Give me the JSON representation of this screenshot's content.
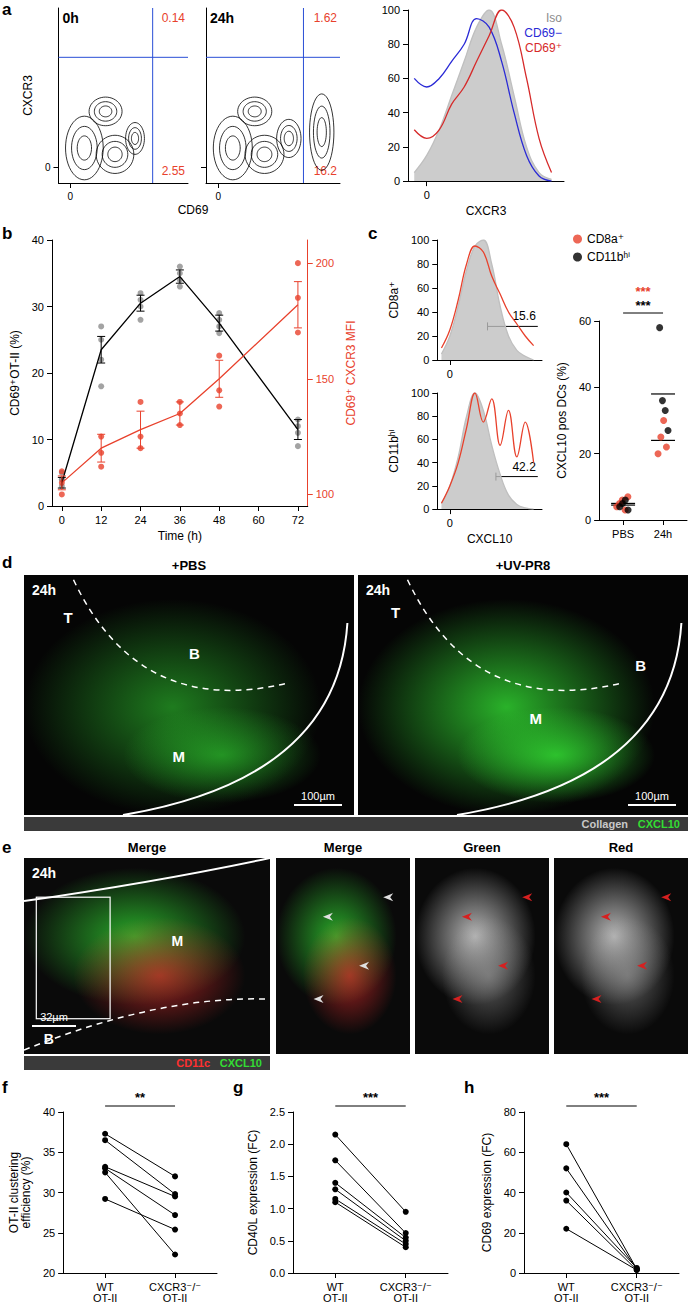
{
  "chart_data": [
    {
      "panel": "a",
      "type": "contour",
      "title": "0h",
      "xlabel": "CD69",
      "ylabel": "CXCR3",
      "color": "#000000",
      "xlim": [
        -10,
        100
      ],
      "ylim": [
        -10,
        100
      ],
      "xticks": [
        0
      ],
      "yticks": [
        0
      ],
      "gates": {
        "x": 70,
        "y": 69
      },
      "quadrants": {
        "upper_right": 0.14,
        "lower_right": 2.55
      },
      "clusters": [
        {
          "x": 12,
          "y": 12,
          "rx": 16,
          "ry": 20
        },
        {
          "x": 38,
          "y": 8,
          "rx": 16,
          "ry": 12
        },
        {
          "x": 30,
          "y": 35,
          "rx": 14,
          "ry": 9
        },
        {
          "x": 55,
          "y": 18,
          "rx": 8,
          "ry": 10
        }
      ]
    },
    {
      "type": "contour",
      "title": "24h",
      "color": "#000000",
      "xlim": [
        -10,
        100
      ],
      "ylim": [
        -10,
        100
      ],
      "xticks": [
        0
      ],
      "yticks": [
        0
      ],
      "gates": {
        "x": 70,
        "y": 69
      },
      "quadrants": {
        "upper_right": 1.62,
        "lower_right": 16.2
      },
      "clusters": [
        {
          "x": 12,
          "y": 12,
          "rx": 16,
          "ry": 20
        },
        {
          "x": 38,
          "y": 8,
          "rx": 16,
          "ry": 12
        },
        {
          "x": 30,
          "y": 35,
          "rx": 14,
          "ry": 9
        },
        {
          "x": 58,
          "y": 18,
          "rx": 10,
          "ry": 12
        },
        {
          "x": 85,
          "y": 22,
          "rx": 10,
          "ry": 24
        }
      ]
    },
    {
      "type": "line",
      "xlabel": "CXCR3",
      "legend": "top-right",
      "xlim": [
        -15,
        110
      ],
      "ylim": [
        0,
        100
      ],
      "xticks": [
        0
      ],
      "yticks": [
        0,
        20,
        40,
        60,
        80,
        100
      ],
      "x": [
        -10,
        0,
        10,
        20,
        30,
        40,
        50,
        60,
        70,
        80,
        90,
        100
      ],
      "series": [
        {
          "name": "Iso",
          "color": "#bfbfbf",
          "type": "area",
          "values": [
            5,
            15,
            30,
            50,
            70,
            90,
            100,
            80,
            50,
            20,
            5,
            1
          ]
        },
        {
          "name": "CD69−",
          "color": "#2a2ad6",
          "type": "line",
          "values": [
            60,
            55,
            60,
            70,
            80,
            95,
            90,
            70,
            40,
            15,
            3,
            0
          ]
        },
        {
          "name": "CD69⁺",
          "color": "#d62a2a",
          "type": "line",
          "values": [
            30,
            25,
            30,
            45,
            55,
            70,
            85,
            100,
            90,
            60,
            25,
            5
          ]
        }
      ]
    },
    {
      "panel": "b",
      "type": "line",
      "xlabel": "Time (h)",
      "ylabel": "CD69⁺OT-II (%)",
      "y2label": "CD69⁺ CXCR3 MFI",
      "xlim": [
        -3,
        75
      ],
      "xticks": [
        0,
        12,
        24,
        36,
        48,
        60,
        72
      ],
      "ylim": [
        0,
        40
      ],
      "yticks": [
        0,
        10,
        20,
        30,
        40
      ],
      "y2lim": [
        95,
        210
      ],
      "y2ticks": [
        100,
        150,
        200
      ],
      "series": [
        {
          "color": "#000000",
          "x": [
            0,
            12,
            24,
            36,
            48,
            72
          ],
          "values": [
            3.5,
            23.5,
            30.5,
            34.5,
            27.5,
            11.5
          ],
          "errors": [
            0.8,
            2.0,
            1.2,
            1.0,
            1.2,
            1.5
          ],
          "points": {
            "color": "#8c8c8c",
            "x": [
              0,
              0,
              0,
              0,
              12,
              12,
              12,
              12,
              24,
              24,
              24,
              24,
              36,
              36,
              36,
              36,
              48,
              48,
              48,
              48,
              72,
              72,
              72,
              72
            ],
            "values": [
              3,
              4,
              5,
              4,
              18,
              25,
              27,
              22,
              28,
              30,
              31,
              32,
              33,
              34,
              35,
              36,
              26,
              28,
              29,
              27,
              9,
              11,
              13,
              12
            ]
          }
        },
        {
          "color": "#e8412c",
          "axis": "y2",
          "x": [
            0,
            12,
            24,
            36,
            48,
            72
          ],
          "values": [
            105,
            120,
            128,
            135,
            150,
            182
          ],
          "errors": [
            3,
            6,
            8,
            5,
            8,
            10
          ],
          "points": {
            "color": "#e8412c",
            "x": [
              0,
              0,
              0,
              12,
              12,
              12,
              24,
              24,
              24,
              36,
              36,
              36,
              48,
              48,
              48,
              72,
              72,
              72
            ],
            "values": [
              100,
              105,
              110,
              112,
              118,
              125,
              120,
              125,
              140,
              130,
              135,
              140,
              138,
              145,
              160,
              170,
              185,
              200
            ]
          }
        }
      ]
    },
    {
      "panel": "c",
      "type": "line",
      "ylabel": "CD8a⁺",
      "xlim": [
        -15,
        110
      ],
      "ylim": [
        0,
        100
      ],
      "xticks": [
        0
      ],
      "yticks": [
        0,
        20,
        40,
        60,
        80,
        100
      ],
      "x": [
        -10,
        0,
        10,
        20,
        30,
        40,
        50,
        60,
        70,
        80,
        90,
        100
      ],
      "gate": {
        "range": [
          45,
          105
        ],
        "value": 15.6
      },
      "series": [
        {
          "color": "#bfbfbf",
          "type": "area",
          "values": [
            5,
            20,
            45,
            75,
            95,
            100,
            80,
            45,
            20,
            8,
            3,
            0
          ]
        },
        {
          "color": "#e8412c",
          "type": "line",
          "values": [
            10,
            25,
            50,
            80,
            95,
            90,
            70,
            55,
            40,
            30,
            20,
            12
          ]
        }
      ]
    },
    {
      "type": "line",
      "ylabel": "CD11bʰⁱ",
      "xlabel": "CXCL10",
      "xlim": [
        -15,
        110
      ],
      "ylim": [
        0,
        100
      ],
      "xticks": [
        0
      ],
      "yticks": [
        0,
        20,
        40,
        60,
        80,
        100
      ],
      "x": [
        -10,
        0,
        10,
        20,
        30,
        40,
        50,
        60,
        70,
        80,
        90,
        100
      ],
      "gate": {
        "range": [
          55,
          105
        ],
        "value": 42.2
      },
      "series": [
        {
          "color": "#bfbfbf",
          "type": "area",
          "values": [
            5,
            20,
            45,
            80,
            100,
            85,
            55,
            30,
            12,
            4,
            1,
            0
          ]
        },
        {
          "color": "#e8412c",
          "type": "line",
          "values": [
            5,
            20,
            40,
            70,
            100,
            75,
            95,
            55,
            85,
            45,
            75,
            40
          ]
        }
      ]
    },
    {
      "type": "scatter",
      "ylabel": "CXCL10 pos DCs (%)",
      "legend": "top-left",
      "categories": [
        "PBS",
        "24h"
      ],
      "ylim": [
        0,
        60
      ],
      "yticks": [
        0,
        20,
        40,
        60
      ],
      "annotations": [
        {
          "text": "***",
          "color": "#000000"
        },
        {
          "text": "***",
          "color": "#e8412c"
        }
      ],
      "series": [
        {
          "name": "CD8a⁺",
          "color": "#e8412c",
          "values": [
            [
              4,
              5,
              6,
              3,
              7
            ],
            [
              20,
              25,
              30,
              22
            ]
          ],
          "means": [
            5,
            24
          ]
        },
        {
          "name": "CD11bʰⁱ",
          "color": "#000000",
          "values": [
            [
              4,
              5,
              6,
              3
            ],
            [
              58,
              36,
              33,
              27
            ]
          ],
          "means": [
            4.5,
            38
          ]
        }
      ]
    },
    {
      "panel": "f",
      "type": "paired",
      "ylabel": "OT-II clustering efficiency (%)",
      "categories": [
        "WT OT-II",
        "CXCR3⁻/⁻ OT-II"
      ],
      "ylim": [
        20,
        40
      ],
      "yticks": [
        20,
        25,
        30,
        35,
        40
      ],
      "color": "#000000",
      "annotations": [
        {
          "text": "**",
          "color": "#000000"
        }
      ],
      "pairs": [
        [
          37.3,
          32
        ],
        [
          36.5,
          29.8
        ],
        [
          33.2,
          29.5
        ],
        [
          33,
          27.2
        ],
        [
          29.2,
          25.4
        ],
        [
          32.5,
          22.3
        ]
      ]
    },
    {
      "panel": "g",
      "type": "paired",
      "ylabel": "CD40L expression (FC)",
      "categories": [
        "WT OT-II",
        "CXCR3⁻/⁻ OT-II"
      ],
      "ylim": [
        0,
        2.5
      ],
      "yticks": [
        {
          "value": 0,
          "label": "0.0"
        },
        0.5,
        {
          "value": 1,
          "label": "1.0"
        },
        1.5,
        {
          "value": 2,
          "label": "2.0"
        },
        2.5
      ],
      "color": "#000000",
      "annotations": [
        {
          "text": "***",
          "color": "#000000"
        }
      ],
      "pairs": [
        [
          2.15,
          0.95
        ],
        [
          1.75,
          0.62
        ],
        [
          1.4,
          0.55
        ],
        [
          1.3,
          0.5
        ],
        [
          1.15,
          0.45
        ],
        [
          1.1,
          0.4
        ]
      ]
    },
    {
      "panel": "h",
      "type": "paired",
      "ylabel": "CD69 expression (FC)",
      "categories": [
        "WT OT-II",
        "CXCR3⁻/⁻ OT-II"
      ],
      "ylim": [
        0,
        80
      ],
      "yticks": [
        0,
        20,
        40,
        60,
        80
      ],
      "color": "#000000",
      "annotations": [
        {
          "text": "***",
          "color": "#000000"
        }
      ],
      "pairs": [
        [
          64,
          2
        ],
        [
          52,
          2
        ],
        [
          40,
          2.5
        ],
        [
          36,
          1.5
        ],
        [
          22,
          1.5
        ]
      ]
    }
  ],
  "images": [
    {
      "panel": "d",
      "images": [
        {
          "title": "+PBS",
          "time": "24h",
          "regions": [
            "T",
            "B",
            "M"
          ],
          "scale_bar": "100µm"
        },
        {
          "title": "+UV-PR8",
          "time": "24h",
          "regions": [
            "T",
            "M",
            "B"
          ],
          "scale_bar": "100µm"
        }
      ],
      "channels": [
        {
          "name": "Collagen",
          "color": "#c8c8c8"
        },
        {
          "name": "CXCL10",
          "color": "#33dd33"
        }
      ]
    },
    {
      "panel": "e",
      "images": [
        {
          "title": "Merge",
          "time": "24h",
          "regions": [
            "M",
            "B"
          ],
          "scale_bar": "32µm"
        },
        {
          "title": "Merge"
        },
        {
          "title": "Green"
        },
        {
          "title": "Red"
        }
      ],
      "channels": [
        {
          "name": "CD11c",
          "color": "#ff3030"
        },
        {
          "name": "CXCL10",
          "color": "#33dd33"
        }
      ]
    }
  ]
}
